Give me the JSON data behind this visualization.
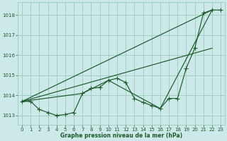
{
  "background_color": "#cce8e8",
  "grid_color": "#99ccbb",
  "line_color": "#1a5c2a",
  "title": "Graphe pression niveau de la mer (hPa)",
  "ylim": [
    1012.55,
    1018.65
  ],
  "xlim": [
    -0.5,
    23.5
  ],
  "yticks": [
    1013,
    1014,
    1015,
    1016,
    1017,
    1018
  ],
  "xticks": [
    0,
    1,
    2,
    3,
    4,
    5,
    6,
    7,
    8,
    9,
    10,
    11,
    12,
    13,
    14,
    15,
    16,
    17,
    18,
    19,
    20,
    21,
    22,
    23
  ],
  "series": [
    {
      "x": [
        0,
        1,
        2,
        3,
        4,
        5,
        6,
        7,
        8,
        9,
        10,
        11,
        12,
        13,
        14,
        15,
        16,
        17,
        18,
        19,
        20,
        21,
        22,
        23
      ],
      "y": [
        1013.7,
        1013.7,
        1013.3,
        1013.15,
        1013.0,
        1013.05,
        1013.15,
        1014.1,
        1014.35,
        1014.4,
        1014.75,
        1014.85,
        1014.65,
        1013.85,
        1013.65,
        1013.5,
        1013.35,
        1013.85,
        1013.85,
        1015.35,
        1016.35,
        1018.1,
        1018.25,
        1018.25
      ],
      "has_marker": true
    },
    {
      "x": [
        0,
        22
      ],
      "y": [
        1013.7,
        1018.25
      ],
      "has_marker": false
    },
    {
      "x": [
        0,
        22
      ],
      "y": [
        1013.7,
        1016.35
      ],
      "has_marker": false
    },
    {
      "x": [
        0,
        7,
        10,
        16,
        22
      ],
      "y": [
        1013.7,
        1014.1,
        1014.75,
        1013.35,
        1018.25
      ],
      "has_marker": false
    }
  ],
  "marker": "+",
  "markersize": 5,
  "linewidth": 0.85
}
